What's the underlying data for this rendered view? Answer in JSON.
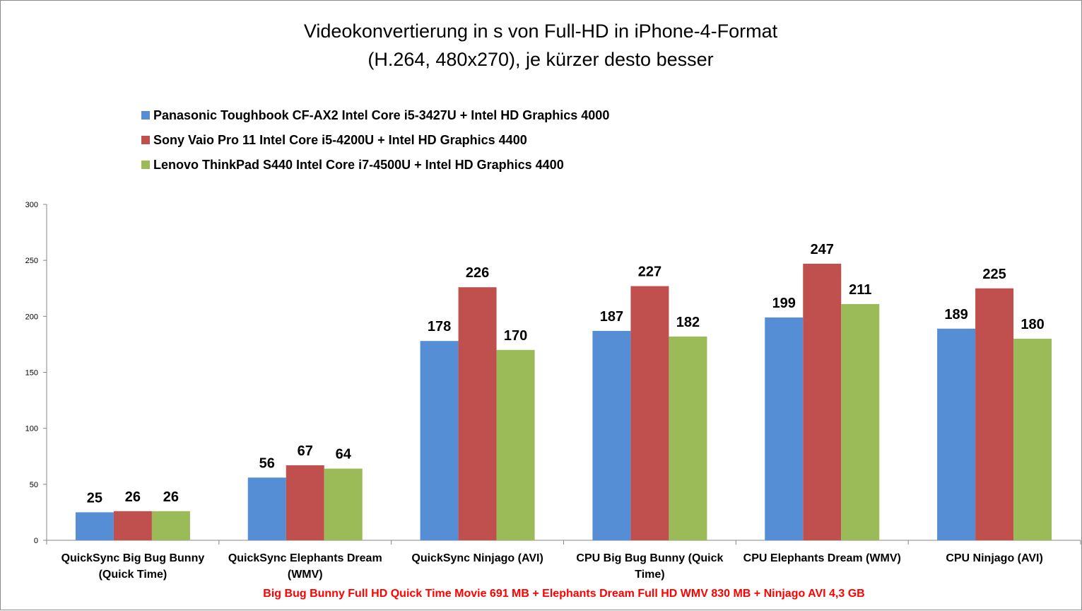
{
  "chart_data": {
    "type": "bar",
    "title_lines": [
      "Videokonvertierung in s von Full-HD in iPhone-4-Format",
      "(H.264, 480x270), je kürzer desto besser"
    ],
    "categories": [
      [
        "QuickSync Big Bug Bunny",
        "(Quick Time)"
      ],
      [
        "QuickSync Elephants Dream",
        "(WMV)"
      ],
      [
        "QuickSync Ninjago (AVI)"
      ],
      [
        "CPU Big Bug Bunny (Quick",
        "Time)"
      ],
      [
        "CPU Elephants Dream (WMV)"
      ],
      [
        "CPU Ninjago (AVI)"
      ]
    ],
    "series": [
      {
        "name": "Panasonic  Toughbook  CF-AX2 Intel Core i5-3427U + Intel HD Graphics 4000",
        "color": "#558ED5",
        "values": [
          25,
          56,
          178,
          187,
          199,
          189
        ]
      },
      {
        "name": "Sony Vaio Pro 11 Intel Core i5-4200U + Intel HD Graphics 4400",
        "color": "#C0504D",
        "values": [
          26,
          67,
          226,
          227,
          247,
          225
        ]
      },
      {
        "name": "Lenovo ThinkPad S440 Intel Core i7-4500U + Intel HD Graphics 4400",
        "color": "#9BBB59",
        "values": [
          26,
          64,
          170,
          182,
          211,
          180
        ]
      }
    ],
    "ylim": [
      0,
      300
    ],
    "yticks": [
      0,
      50,
      100,
      150,
      200,
      250,
      300
    ],
    "legend_position": "top-left",
    "grid": false,
    "caption": "Big Bug Bunny Full HD Quick Time Movie 691 MB + Elephants Dream Full HD WMV 830 MB + Ninjago AVI 4,3 GB",
    "caption_color": "#FF0000"
  }
}
